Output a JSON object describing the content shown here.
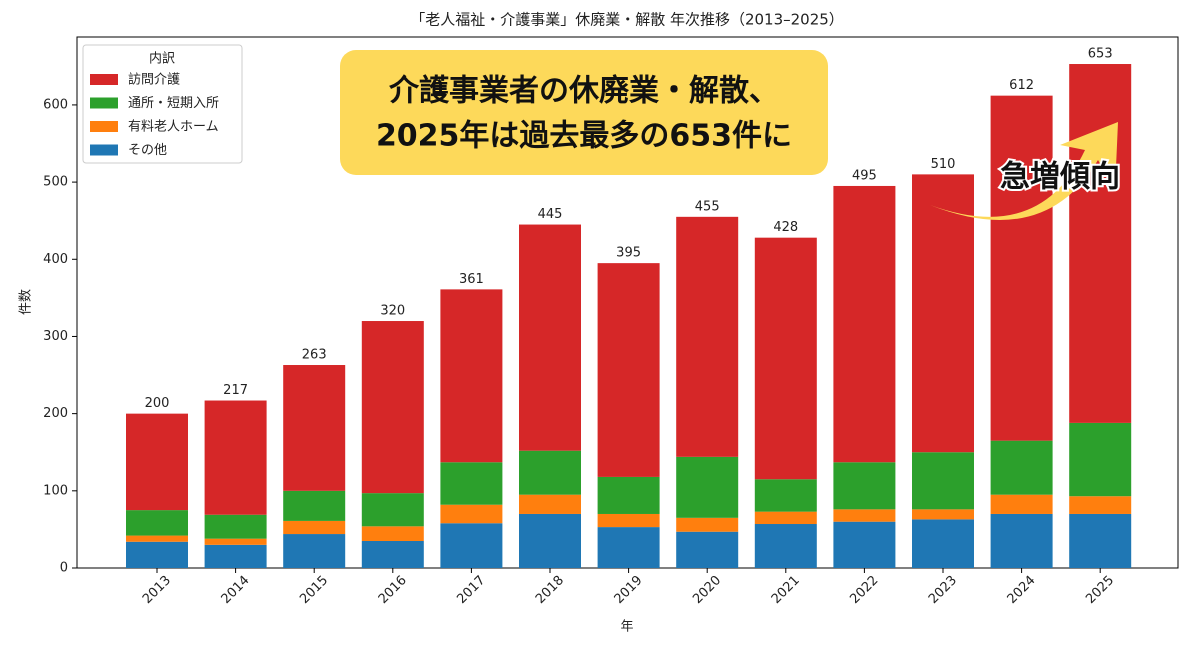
{
  "chart_data": {
    "type": "stacked-bar",
    "title": "「老人福祉・介護事業」休廃業・解散 年次推移（2013–2025）",
    "x_label": "年",
    "y_label": "件数",
    "categories": [
      "2013",
      "2014",
      "2015",
      "2016",
      "2017",
      "2018",
      "2019",
      "2020",
      "2021",
      "2022",
      "2023",
      "2024",
      "2025"
    ],
    "series": [
      {
        "name": "その他",
        "color": "#1f77b4",
        "values": [
          34,
          30,
          44,
          35,
          58,
          70,
          53,
          47,
          57,
          60,
          63,
          70,
          70
        ]
      },
      {
        "name": "有料老人ホーム",
        "color": "#ff7f0e",
        "values": [
          8,
          8,
          17,
          19,
          24,
          25,
          17,
          18,
          16,
          16,
          13,
          25,
          23
        ]
      },
      {
        "name": "通所・短期入所",
        "color": "#2ca02c",
        "values": [
          33,
          31,
          39,
          43,
          55,
          57,
          48,
          79,
          42,
          61,
          74,
          70,
          95
        ]
      },
      {
        "name": "訪問介護",
        "color": "#d62728",
        "values": [
          125,
          148,
          163,
          223,
          224,
          293,
          277,
          311,
          313,
          358,
          360,
          447,
          465
        ]
      }
    ],
    "totals": [
      200,
      217,
      263,
      320,
      361,
      445,
      395,
      455,
      428,
      495,
      510,
      612,
      653
    ],
    "legend_title": "内訳",
    "legend_position": "upper left",
    "ylim": [
      0,
      688
    ],
    "yticks": [
      0,
      100,
      200,
      300,
      400,
      500,
      600
    ],
    "annotation": {
      "lines": [
        "介護事業者の休廃業・解散、",
        "2025年は過去最多の653件に"
      ],
      "arrow_label": "急増傾向"
    }
  }
}
